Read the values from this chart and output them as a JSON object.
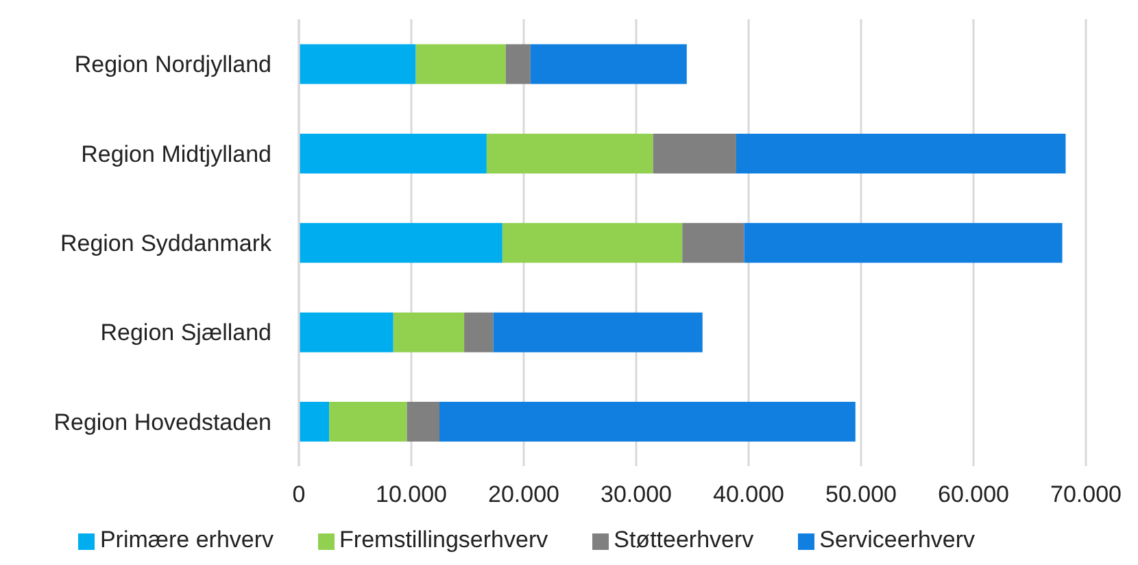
{
  "chart_data": {
    "type": "bar",
    "orientation": "horizontal",
    "stacked": true,
    "categories": [
      "Region Nordjylland",
      "Region Midtjylland",
      "Region Syddanmark",
      "Region Sjælland",
      "Region Hovedstaden"
    ],
    "series": [
      {
        "name": "Primære erhverv",
        "color": "#00adee",
        "values": [
          10400,
          16700,
          18100,
          8400,
          2700
        ]
      },
      {
        "name": "Fremstillingserhverv",
        "color": "#92d050",
        "values": [
          8000,
          14800,
          16000,
          6300,
          6900
        ]
      },
      {
        "name": "Støtteerhverv",
        "color": "#808080",
        "values": [
          2200,
          7400,
          5500,
          2600,
          2900
        ]
      },
      {
        "name": "Serviceerhverv",
        "color": "#117fe0",
        "values": [
          13900,
          29300,
          28300,
          18600,
          37000
        ]
      }
    ],
    "xlim": [
      0,
      70000
    ],
    "xticks": [
      0,
      {
        "value": 10000,
        "label": "10.000"
      },
      {
        "value": 20000,
        "label": "20.000"
      },
      {
        "value": 30000,
        "label": "30.000"
      },
      {
        "value": 40000,
        "label": "40.000"
      },
      {
        "value": 50000,
        "label": "50.000"
      },
      {
        "value": 60000,
        "label": "60.000"
      },
      {
        "value": 70000,
        "label": "70.000"
      }
    ],
    "grid": "x",
    "legend": "bottom"
  }
}
